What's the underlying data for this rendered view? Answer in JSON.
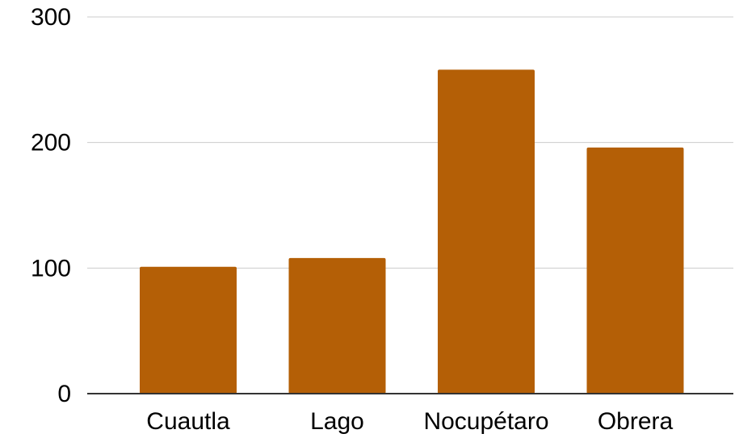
{
  "chart_data": {
    "type": "bar",
    "categories": [
      "Cuautla",
      "Lago",
      "Nocupétaro",
      "Obrera"
    ],
    "values": [
      101,
      108,
      258,
      196
    ],
    "ylim": [
      0,
      300
    ],
    "yticks": [
      "0",
      "100",
      "200",
      "300"
    ],
    "grid": true,
    "legend": "none",
    "bar_color": "#b45f06",
    "gridline_color": "#cccccc",
    "axis_color": "#333333"
  }
}
